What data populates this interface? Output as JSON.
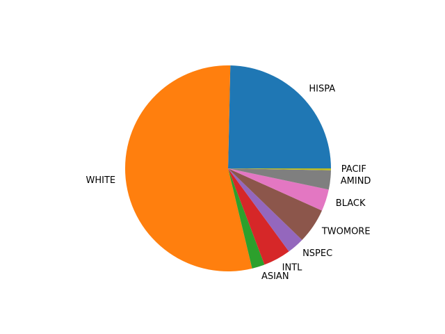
{
  "chart_data": {
    "type": "pie",
    "start_angle_deg": 0,
    "direction": "counterclockwise",
    "slices": [
      {
        "label": "HISPA",
        "value": 24.6,
        "color": "#1f77b4"
      },
      {
        "label": "WHITE",
        "value": 54.0,
        "color": "#ff7f0e"
      },
      {
        "label": "ASIAN",
        "value": 2.0,
        "color": "#2ca02c"
      },
      {
        "label": "INTL",
        "value": 4.3,
        "color": "#d62728"
      },
      {
        "label": "NSPEC",
        "value": 2.7,
        "color": "#9467bd"
      },
      {
        "label": "TWOMORE",
        "value": 5.5,
        "color": "#8c564b"
      },
      {
        "label": "BLACK",
        "value": 3.4,
        "color": "#e377c2"
      },
      {
        "label": "AMIND",
        "value": 3.0,
        "color": "#7f7f7f"
      },
      {
        "label": "PACIF",
        "value": 0.3,
        "color": "#bcbd22"
      }
    ]
  }
}
